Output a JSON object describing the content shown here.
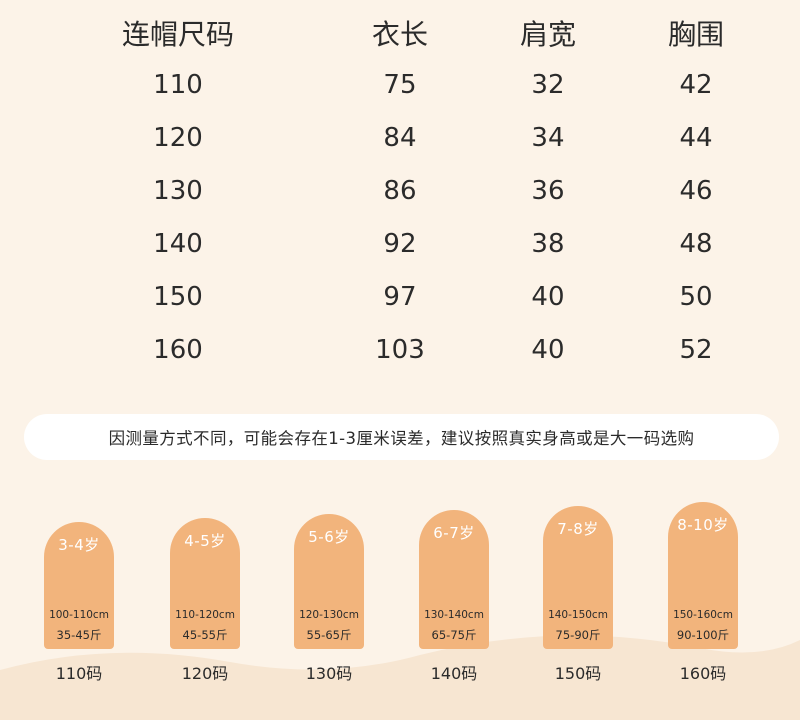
{
  "table": {
    "headers": [
      "连帽尺码",
      "衣长",
      "肩宽",
      "胸围"
    ],
    "rows": [
      [
        "110",
        "75",
        "32",
        "42"
      ],
      [
        "120",
        "84",
        "34",
        "44"
      ],
      [
        "130",
        "86",
        "36",
        "46"
      ],
      [
        "140",
        "92",
        "38",
        "48"
      ],
      [
        "150",
        "97",
        "40",
        "50"
      ],
      [
        "160",
        "103",
        "40",
        "52"
      ]
    ]
  },
  "note": "因测量方式不同，可能会存在1-3厘米误差，建议按照真实身高或是大一码选购",
  "cards": [
    {
      "age": "3-4岁",
      "height": "100-110cm",
      "weight": "35-45斤",
      "size": "110码"
    },
    {
      "age": "4-5岁",
      "height": "110-120cm",
      "weight": "45-55斤",
      "size": "120码"
    },
    {
      "age": "5-6岁",
      "height": "120-130cm",
      "weight": "55-65斤",
      "size": "130码"
    },
    {
      "age": "6-7岁",
      "height": "130-140cm",
      "weight": "65-75斤",
      "size": "140码"
    },
    {
      "age": "7-8岁",
      "height": "140-150cm",
      "weight": "75-90斤",
      "size": "150码"
    },
    {
      "age": "8-10岁",
      "height": "150-160cm",
      "weight": "90-100斤",
      "size": "160码"
    }
  ],
  "colors": {
    "background": "#fcf3e8",
    "card": "#f2b47c",
    "text": "#2b2b2b"
  }
}
